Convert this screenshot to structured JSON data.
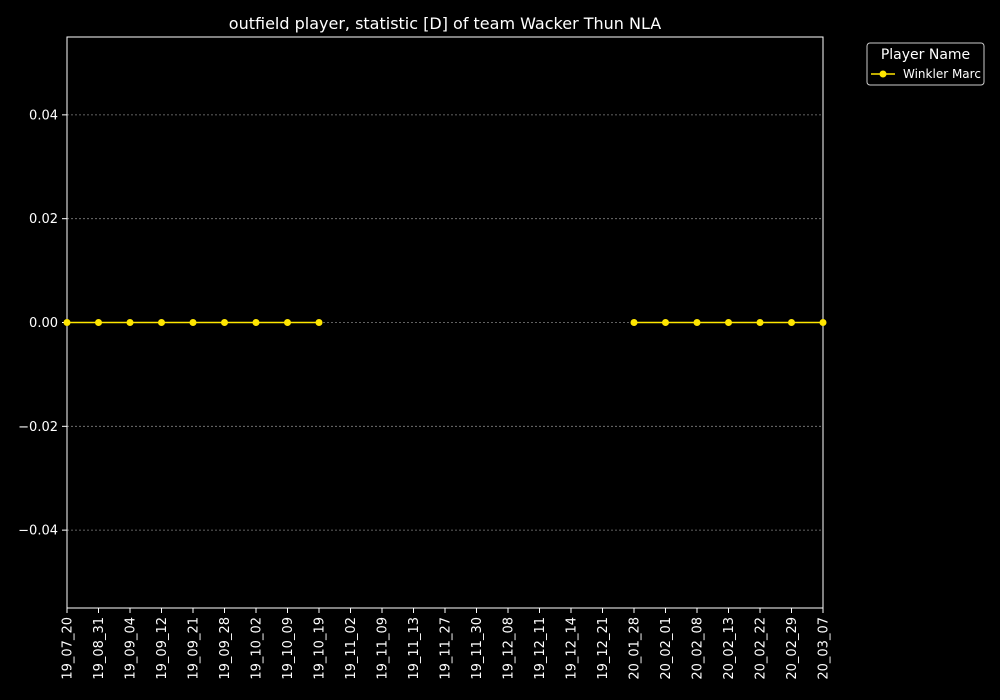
{
  "chart_data": {
    "type": "line",
    "title": "outfield player, statistic [D] of team Wacker Thun NLA",
    "xlabel": "",
    "ylabel": "",
    "categories": [
      "19_07_20",
      "19_08_31",
      "19_09_04",
      "19_09_12",
      "19_09_21",
      "19_09_28",
      "19_10_02",
      "19_10_09",
      "19_10_19",
      "19_11_02",
      "19_11_09",
      "19_11_13",
      "19_11_27",
      "19_11_30",
      "19_12_08",
      "19_12_11",
      "19_12_14",
      "19_12_21",
      "20_01_28",
      "20_02_01",
      "20_02_08",
      "20_02_13",
      "20_02_22",
      "20_02_29",
      "20_03_07"
    ],
    "ylim": [
      -0.055,
      0.055
    ],
    "yticks": [
      -0.04,
      -0.02,
      0.0,
      0.02,
      0.04
    ],
    "ytick_labels": [
      "−0.04",
      "−0.02",
      "0.00",
      "0.02",
      "0.04"
    ],
    "grid": true,
    "legend": {
      "title": "Player Name",
      "placement": "outside-top-right"
    },
    "series": [
      {
        "name": "Winkler Marc",
        "color": "#ffe600",
        "values": [
          0,
          0,
          0,
          0,
          0,
          0,
          0,
          0,
          0,
          null,
          null,
          null,
          null,
          null,
          null,
          null,
          null,
          null,
          0,
          0,
          0,
          0,
          0,
          0,
          0
        ]
      }
    ]
  },
  "colors": {
    "background": "#000000",
    "axes": "#ffffff",
    "grid": "#808080"
  }
}
